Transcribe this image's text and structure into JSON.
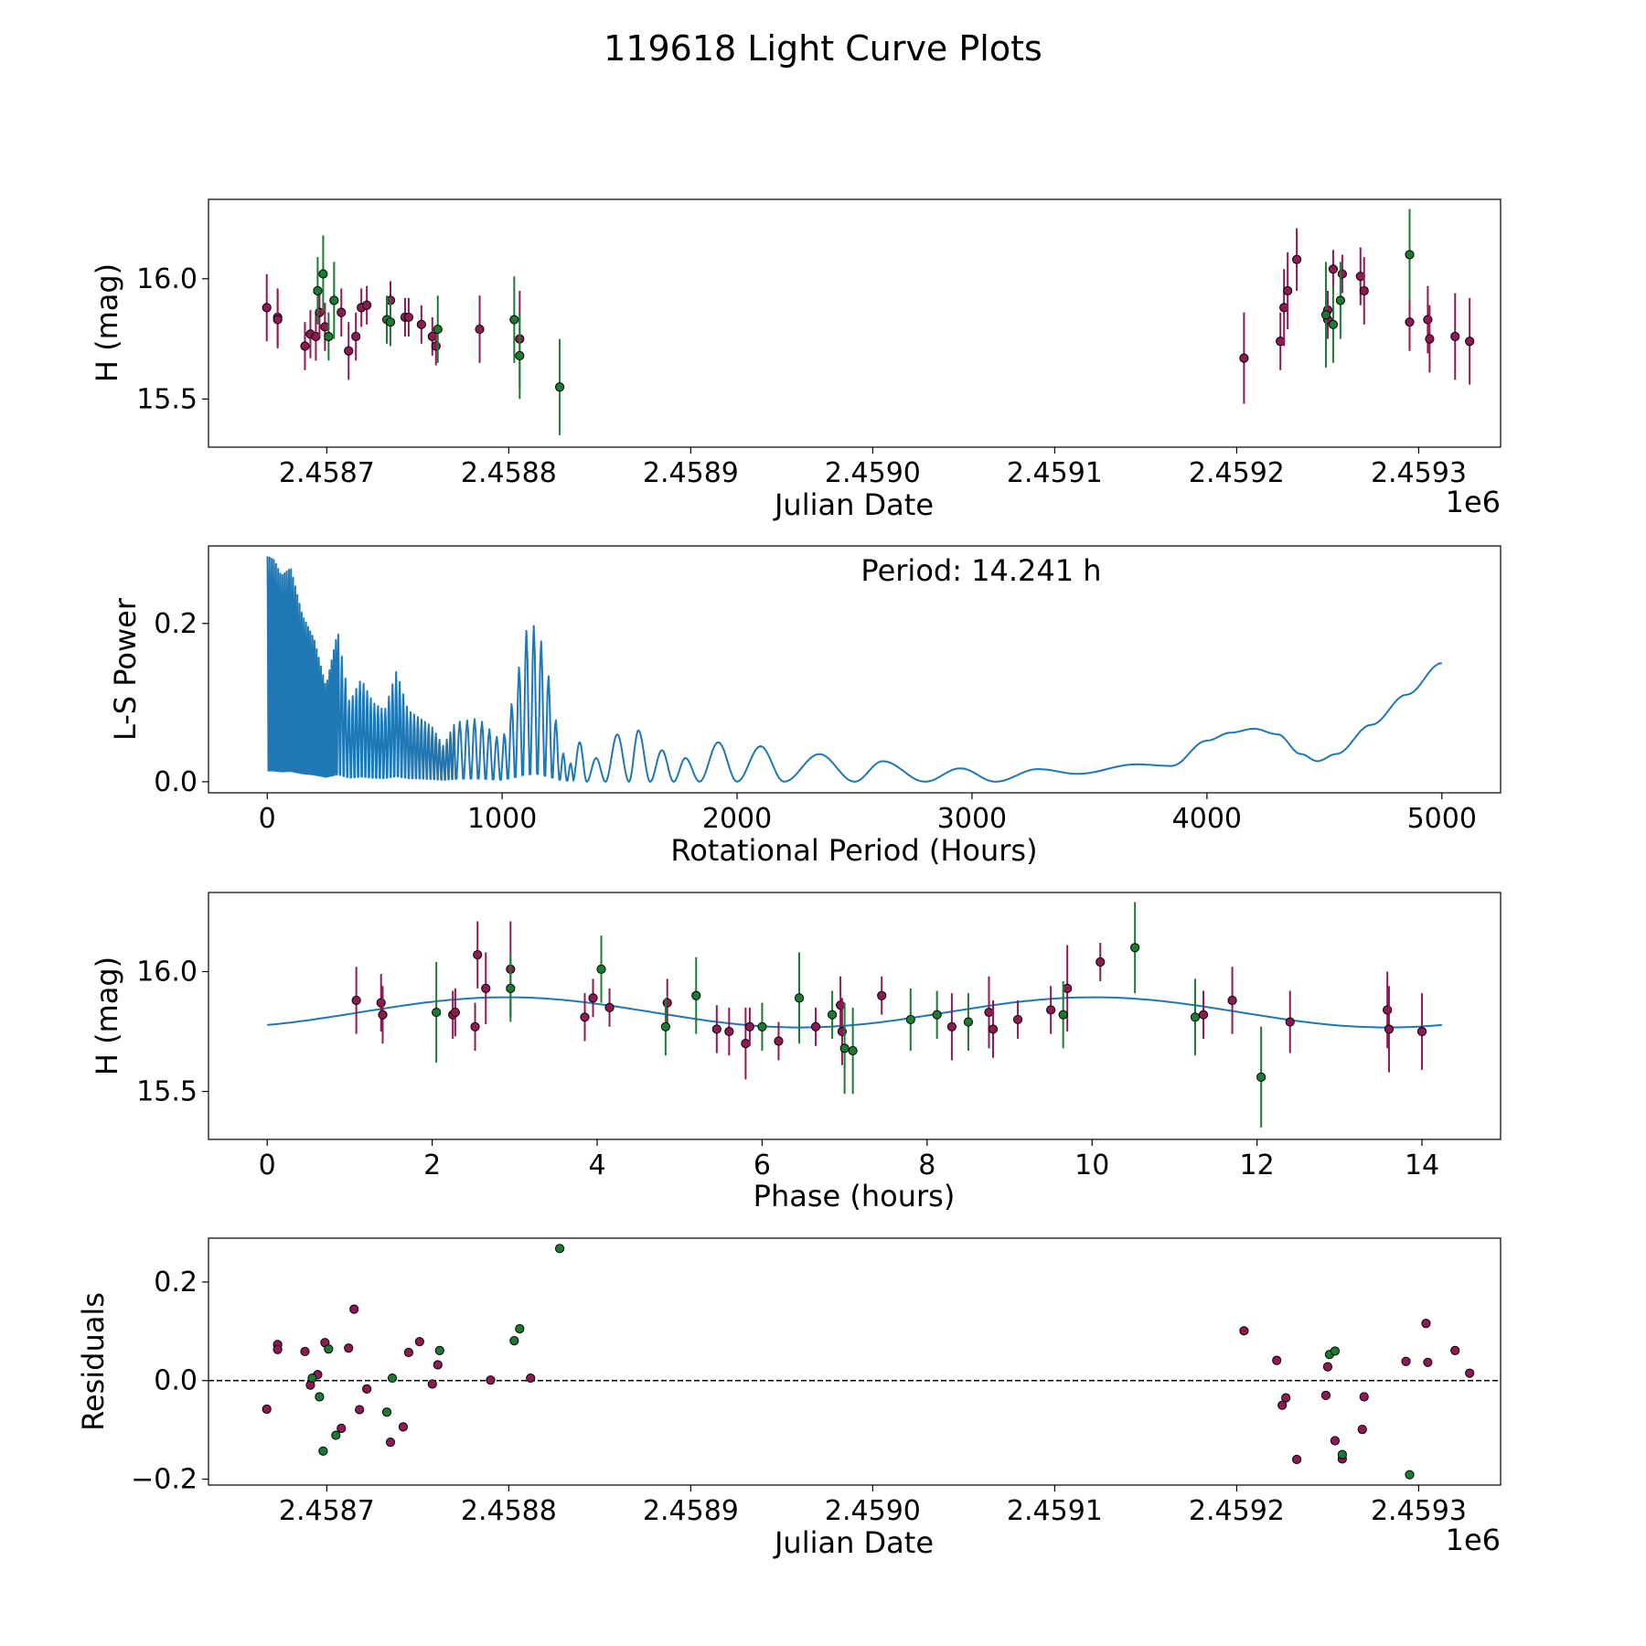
{
  "figure": {
    "title": "119618 Light Curve Plots"
  },
  "colors": {
    "magenta": "#8e1a55",
    "green": "#1d7a32",
    "line": "#1f77b4",
    "edge": "#000000"
  },
  "chart_data": [
    {
      "id": "lc",
      "type": "scatter",
      "xlabel": "Julian Date",
      "ylabel": "H (mag)",
      "offset_text": "1e6",
      "xlim": [
        2458635,
        2459345
      ],
      "ylim": [
        15.3,
        16.33
      ],
      "xticks": [
        2458700,
        2458800,
        2458900,
        2459000,
        2459100,
        2459200,
        2459300
      ],
      "xticklabels": [
        "2.4587",
        "2.4588",
        "2.4589",
        "2.4590",
        "2.4591",
        "2.4592",
        "2.4593"
      ],
      "yticks": [
        15.5,
        16.0
      ],
      "yticklabels": [
        "15.5",
        "16.0"
      ],
      "series": [
        {
          "name": "magenta",
          "color": "magenta",
          "points": [
            [
              2458667,
              15.88,
              0.14
            ],
            [
              2458673,
              15.84,
              0.12
            ],
            [
              2458673,
              15.83,
              0.12
            ],
            [
              2458688,
              15.72,
              0.1
            ],
            [
              2458691,
              15.77,
              0.1
            ],
            [
              2458694,
              15.76,
              0.1
            ],
            [
              2458696,
              15.86,
              0.1
            ],
            [
              2458699,
              15.8,
              0.1
            ],
            [
              2458708,
              15.86,
              0.1
            ],
            [
              2458712,
              15.7,
              0.12
            ],
            [
              2458716,
              15.76,
              0.1
            ],
            [
              2458719,
              15.88,
              0.08
            ],
            [
              2458722,
              15.89,
              0.08
            ],
            [
              2458735,
              15.91,
              0.08
            ],
            [
              2458743,
              15.84,
              0.08
            ],
            [
              2458745,
              15.84,
              0.08
            ],
            [
              2458752,
              15.81,
              0.08
            ],
            [
              2458758,
              15.76,
              0.08
            ],
            [
              2458760,
              15.72,
              0.08
            ],
            [
              2458784,
              15.79,
              0.14
            ],
            [
              2458806,
              15.75,
              0.2
            ],
            [
              2459204,
              15.67,
              0.19
            ],
            [
              2459224,
              15.74,
              0.12
            ],
            [
              2459226,
              15.88,
              0.16
            ],
            [
              2459228,
              15.95,
              0.16
            ],
            [
              2459233,
              16.08,
              0.13
            ],
            [
              2459250,
              15.87,
              0.08
            ],
            [
              2459250,
              15.83,
              0.08
            ],
            [
              2459253,
              16.04,
              0.08
            ],
            [
              2459258,
              16.02,
              0.08
            ],
            [
              2459268,
              16.01,
              0.12
            ],
            [
              2459270,
              15.95,
              0.14
            ],
            [
              2459295,
              15.82,
              0.12
            ],
            [
              2459305,
              15.83,
              0.14
            ],
            [
              2459306,
              15.75,
              0.14
            ],
            [
              2459320,
              15.76,
              0.18
            ],
            [
              2459328,
              15.74,
              0.18
            ]
          ]
        },
        {
          "name": "green",
          "color": "green",
          "points": [
            [
              2458695,
              15.95,
              0.14
            ],
            [
              2458698,
              16.02,
              0.16
            ],
            [
              2458701,
              15.76,
              0.1
            ],
            [
              2458704,
              15.91,
              0.16
            ],
            [
              2458733,
              15.83,
              0.1
            ],
            [
              2458735,
              15.82,
              0.1
            ],
            [
              2458761,
              15.79,
              0.14
            ],
            [
              2458803,
              15.83,
              0.18
            ],
            [
              2458806,
              15.68,
              0.18
            ],
            [
              2458828,
              15.55,
              0.2
            ],
            [
              2459249,
              15.85,
              0.22
            ],
            [
              2459253,
              15.81,
              0.16
            ],
            [
              2459257,
              15.91,
              0.16
            ],
            [
              2459295,
              16.1,
              0.19
            ]
          ]
        }
      ]
    },
    {
      "id": "ls",
      "type": "line",
      "xlabel": "Rotational Period (Hours)",
      "ylabel": "L-S Power",
      "annotation": "Period: 14.241 h",
      "xlim": [
        -250,
        5250
      ],
      "ylim": [
        -0.014,
        0.298
      ],
      "xticks": [
        0,
        1000,
        2000,
        3000,
        4000,
        5000
      ],
      "xticklabels": [
        "0",
        "1000",
        "2000",
        "3000",
        "4000",
        "5000"
      ],
      "yticks": [
        0.0,
        0.2
      ],
      "yticklabels": [
        "0.0",
        "0.2"
      ],
      "envelope": [
        [
          0,
          0.285
        ],
        [
          30,
          0.28
        ],
        [
          60,
          0.26
        ],
        [
          100,
          0.27
        ],
        [
          150,
          0.21
        ],
        [
          200,
          0.18
        ],
        [
          250,
          0.12
        ],
        [
          300,
          0.19
        ],
        [
          350,
          0.1
        ],
        [
          400,
          0.13
        ],
        [
          450,
          0.1
        ],
        [
          500,
          0.09
        ],
        [
          550,
          0.14
        ],
        [
          600,
          0.09
        ],
        [
          650,
          0.08
        ],
        [
          700,
          0.07
        ],
        [
          750,
          0.045
        ],
        [
          800,
          0.075
        ],
        [
          900,
          0.08
        ],
        [
          1000,
          0.05
        ],
        [
          1050,
          0.11
        ],
        [
          1100,
          0.19
        ],
        [
          1150,
          0.2
        ],
        [
          1200,
          0.13
        ],
        [
          1250,
          0.04
        ],
        [
          1300,
          0.02
        ]
      ],
      "smooth": [
        [
          1300,
          0.0
        ],
        [
          1330,
          0.05
        ],
        [
          1360,
          0.0
        ],
        [
          1400,
          0.03
        ],
        [
          1440,
          0.0
        ],
        [
          1490,
          0.06
        ],
        [
          1540,
          0.0
        ],
        [
          1580,
          0.065
        ],
        [
          1630,
          0.0
        ],
        [
          1680,
          0.04
        ],
        [
          1730,
          0.0
        ],
        [
          1780,
          0.03
        ],
        [
          1840,
          0.0
        ],
        [
          1920,
          0.05
        ],
        [
          2000,
          0.0
        ],
        [
          2100,
          0.045
        ],
        [
          2200,
          0.0
        ],
        [
          2350,
          0.035
        ],
        [
          2500,
          0.0
        ],
        [
          2620,
          0.026
        ],
        [
          2800,
          0.0
        ],
        [
          2950,
          0.017
        ],
        [
          3100,
          0.0
        ],
        [
          3280,
          0.016
        ],
        [
          3450,
          0.01
        ],
        [
          3700,
          0.022
        ],
        [
          3850,
          0.02
        ],
        [
          4000,
          0.052
        ],
        [
          4100,
          0.062
        ],
        [
          4200,
          0.067
        ],
        [
          4300,
          0.06
        ],
        [
          4400,
          0.035
        ],
        [
          4470,
          0.026
        ],
        [
          4550,
          0.035
        ],
        [
          4700,
          0.072
        ],
        [
          4850,
          0.11
        ],
        [
          5000,
          0.15
        ]
      ]
    },
    {
      "id": "phase",
      "type": "scatter",
      "xlabel": "Phase (hours)",
      "ylabel": "H (mag)",
      "xlim": [
        -0.712,
        14.953
      ],
      "ylim": [
        15.3,
        16.33
      ],
      "xticks": [
        0,
        2,
        4,
        6,
        8,
        10,
        12,
        14
      ],
      "xticklabels": [
        "0",
        "2",
        "4",
        "6",
        "8",
        "10",
        "12",
        "14"
      ],
      "yticks": [
        15.5,
        16.0
      ],
      "yticklabels": [
        "15.5",
        "16.0"
      ],
      "model": {
        "period": 14.241,
        "mean": 15.83,
        "amp": 0.063,
        "peak_phase": 2.9
      },
      "series": [
        {
          "name": "magenta",
          "color": "magenta",
          "points": [
            [
              1.08,
              15.88,
              0.14
            ],
            [
              1.38,
              15.87,
              0.12
            ],
            [
              1.4,
              15.82,
              0.12
            ],
            [
              2.25,
              15.82,
              0.1
            ],
            [
              2.28,
              15.83,
              0.1
            ],
            [
              2.52,
              15.77,
              0.1
            ],
            [
              2.55,
              16.07,
              0.14
            ],
            [
              2.65,
              15.93,
              0.15
            ],
            [
              2.95,
              16.01,
              0.2
            ],
            [
              3.85,
              15.81,
              0.1
            ],
            [
              3.95,
              15.89,
              0.08
            ],
            [
              4.15,
              15.85,
              0.08
            ],
            [
              4.85,
              15.87,
              0.1
            ],
            [
              5.45,
              15.76,
              0.1
            ],
            [
              5.6,
              15.75,
              0.1
            ],
            [
              5.8,
              15.7,
              0.15
            ],
            [
              5.85,
              15.77,
              0.08
            ],
            [
              6.2,
              15.71,
              0.08
            ],
            [
              6.65,
              15.77,
              0.08
            ],
            [
              6.95,
              15.86,
              0.12
            ],
            [
              6.97,
              15.75,
              0.14
            ],
            [
              7.45,
              15.9,
              0.08
            ],
            [
              8.3,
              15.77,
              0.14
            ],
            [
              8.75,
              15.83,
              0.15
            ],
            [
              8.8,
              15.76,
              0.12
            ],
            [
              9.1,
              15.8,
              0.08
            ],
            [
              9.5,
              15.84,
              0.1
            ],
            [
              9.7,
              15.93,
              0.18
            ],
            [
              10.1,
              16.04,
              0.08
            ],
            [
              11.35,
              15.82,
              0.1
            ],
            [
              11.7,
              15.88,
              0.14
            ],
            [
              12.4,
              15.79,
              0.13
            ],
            [
              13.58,
              15.84,
              0.16
            ],
            [
              13.6,
              15.76,
              0.18
            ],
            [
              14.0,
              15.75,
              0.16
            ]
          ]
        },
        {
          "name": "green",
          "color": "green",
          "points": [
            [
              2.05,
              15.83,
              0.21
            ],
            [
              2.95,
              15.93,
              0.14
            ],
            [
              4.05,
              16.01,
              0.14
            ],
            [
              4.83,
              15.77,
              0.12
            ],
            [
              5.2,
              15.9,
              0.16
            ],
            [
              6.0,
              15.77,
              0.1
            ],
            [
              6.85,
              15.82,
              0.1
            ],
            [
              7.0,
              15.68,
              0.19
            ],
            [
              7.1,
              15.67,
              0.18
            ],
            [
              6.45,
              15.89,
              0.19
            ],
            [
              7.8,
              15.8,
              0.13
            ],
            [
              8.12,
              15.82,
              0.1
            ],
            [
              8.5,
              15.79,
              0.12
            ],
            [
              9.65,
              15.82,
              0.14
            ],
            [
              10.52,
              16.1,
              0.19
            ],
            [
              11.25,
              15.81,
              0.16
            ],
            [
              12.05,
              15.56,
              0.21
            ]
          ]
        }
      ]
    },
    {
      "id": "res",
      "type": "scatter",
      "xlabel": "Julian Date",
      "ylabel": "Residuals",
      "offset_text": "1e6",
      "xlim": [
        2458635,
        2459345
      ],
      "ylim": [
        -0.212,
        0.289
      ],
      "xticks": [
        2458700,
        2458800,
        2458900,
        2459000,
        2459100,
        2459200,
        2459300
      ],
      "xticklabels": [
        "2.4587",
        "2.4588",
        "2.4589",
        "2.4590",
        "2.4591",
        "2.4592",
        "2.4593"
      ],
      "yticks": [
        -0.2,
        0.0,
        0.2
      ],
      "yticklabels": [
        "−0.2",
        "0.0",
        "0.2"
      ],
      "hline": 0,
      "series": [
        {
          "name": "magenta",
          "color": "magenta",
          "points": [
            [
              2458667,
              -0.058
            ],
            [
              2458673,
              0.073
            ],
            [
              2458673,
              0.063
            ],
            [
              2458688,
              0.059
            ],
            [
              2458691,
              -0.009
            ],
            [
              2458695,
              0.012
            ],
            [
              2458699,
              0.077
            ],
            [
              2458708,
              -0.097
            ],
            [
              2458712,
              0.066
            ],
            [
              2458715,
              0.145
            ],
            [
              2458718,
              -0.059
            ],
            [
              2458722,
              -0.017
            ],
            [
              2458735,
              -0.125
            ],
            [
              2458742,
              -0.094
            ],
            [
              2458745,
              0.057
            ],
            [
              2458751,
              0.079
            ],
            [
              2458758,
              -0.007
            ],
            [
              2458761,
              0.032
            ],
            [
              2458790,
              0.001
            ],
            [
              2458812,
              0.005
            ],
            [
              2459204,
              0.101
            ],
            [
              2459222,
              0.041
            ],
            [
              2459225,
              -0.05
            ],
            [
              2459227,
              -0.035
            ],
            [
              2459233,
              -0.16
            ],
            [
              2459249,
              -0.03
            ],
            [
              2459250,
              0.028
            ],
            [
              2459254,
              -0.122
            ],
            [
              2459258,
              -0.159
            ],
            [
              2459269,
              -0.099
            ],
            [
              2459270,
              -0.033
            ],
            [
              2459293,
              0.039
            ],
            [
              2459304,
              0.116
            ],
            [
              2459305,
              0.037
            ],
            [
              2459320,
              0.061
            ],
            [
              2459328,
              0.015
            ]
          ]
        },
        {
          "name": "green",
          "color": "green",
          "points": [
            [
              2458692,
              0.005
            ],
            [
              2458696,
              -0.033
            ],
            [
              2458698,
              -0.143
            ],
            [
              2458701,
              0.064
            ],
            [
              2458705,
              -0.111
            ],
            [
              2458733,
              -0.064
            ],
            [
              2458736,
              0.005
            ],
            [
              2458762,
              0.061
            ],
            [
              2458803,
              0.081
            ],
            [
              2458806,
              0.105
            ],
            [
              2458828,
              0.268
            ],
            [
              2459251,
              0.053
            ],
            [
              2459254,
              0.06
            ],
            [
              2459258,
              -0.15
            ],
            [
              2459295,
              -0.191
            ]
          ]
        }
      ]
    }
  ]
}
